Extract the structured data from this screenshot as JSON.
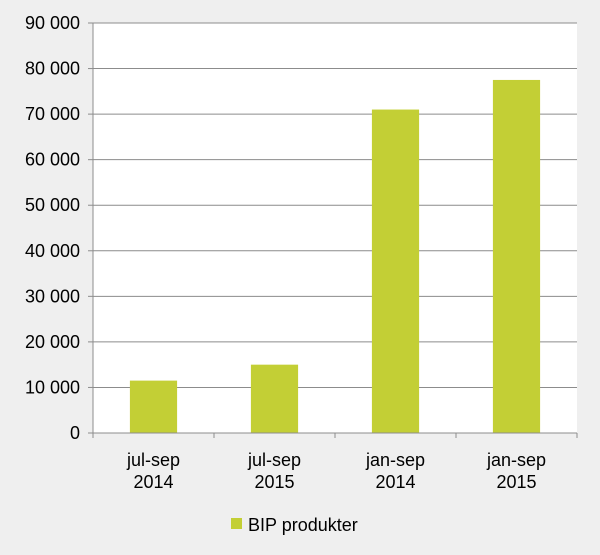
{
  "chart_data": {
    "type": "bar",
    "categories": [
      [
        "jul-sep",
        "2014"
      ],
      [
        "jul-sep",
        "2015"
      ],
      [
        "jan-sep",
        "2014"
      ],
      [
        "jan-sep",
        "2015"
      ]
    ],
    "series": [
      {
        "name": "BIP produkter",
        "values": [
          11500,
          15000,
          71000,
          77500
        ],
        "color": "#c3cf35"
      }
    ],
    "ylim": [
      0,
      90000
    ],
    "yticks": [
      "0",
      "10 000",
      "20 000",
      "30 000",
      "40 000",
      "50 000",
      "60 000",
      "70 000",
      "80 000",
      "90 000"
    ],
    "grid": true,
    "legend": "bottom",
    "colors": {
      "background": "#efefef",
      "plot_area": "#ffffff",
      "gridline": "#8c8c8c"
    }
  }
}
